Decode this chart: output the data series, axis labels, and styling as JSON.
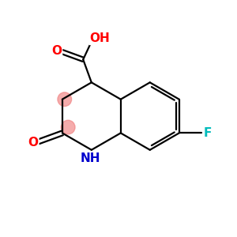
{
  "background_color": "#ffffff",
  "atom_colors": {
    "O": "#ff0000",
    "N": "#0000cd",
    "F": "#00bbbb",
    "C": "#000000"
  },
  "bond_color": "#000000",
  "highlight_color": "#f08080",
  "bond_lw": 1.6,
  "figsize": [
    3.0,
    3.0
  ],
  "dpi": 100,
  "xlim": [
    0,
    10
  ],
  "ylim": [
    0,
    10
  ]
}
